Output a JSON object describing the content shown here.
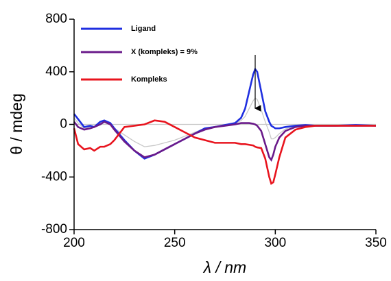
{
  "chart_data": {
    "type": "line",
    "x_label": "λ / nm",
    "y_label": "θ / mdeg",
    "x": [
      200,
      202,
      205,
      208,
      210,
      213,
      215,
      218,
      220,
      225,
      230,
      235,
      240,
      245,
      250,
      255,
      260,
      265,
      270,
      275,
      280,
      283,
      285,
      287,
      289,
      290,
      291,
      293,
      295,
      297,
      298,
      299,
      300,
      302,
      305,
      310,
      315,
      320,
      330,
      340,
      350
    ],
    "xlim": [
      200,
      350
    ],
    "xticks": [
      200,
      250,
      300,
      350
    ],
    "ylim": [
      -800,
      800
    ],
    "yticks": [
      -800,
      -400,
      0,
      400,
      800
    ],
    "legend": "upper left",
    "series": [
      {
        "color": "#c8c8c8",
        "values": [
          0,
          0,
          0,
          0,
          0,
          0,
          0,
          0,
          0,
          0,
          0,
          0,
          0,
          0,
          0,
          0,
          0,
          0,
          0,
          0,
          0,
          0,
          0,
          0,
          0,
          0,
          0,
          0,
          0,
          0,
          0,
          0,
          0,
          0,
          0,
          0,
          0,
          0,
          0,
          0,
          0
        ]
      },
      {
        "color": "#c8c8c8",
        "values": [
          50,
          10,
          -30,
          -20,
          -20,
          10,
          20,
          0,
          -30,
          -80,
          -130,
          -170,
          -160,
          -140,
          -120,
          -90,
          -60,
          -30,
          -15,
          -5,
          5,
          30,
          60,
          120,
          180,
          200,
          190,
          110,
          20,
          -60,
          -110,
          -110,
          -100,
          -70,
          -35,
          -15,
          -8,
          -10,
          -10,
          -8,
          -10
        ]
      },
      {
        "name": "Ligand",
        "color": "#1f2fe0",
        "values": [
          80,
          40,
          -20,
          -10,
          -20,
          20,
          30,
          10,
          -30,
          -120,
          -200,
          -260,
          -230,
          -190,
          -150,
          -110,
          -70,
          -30,
          -20,
          -5,
          10,
          50,
          120,
          250,
          380,
          420,
          400,
          250,
          100,
          20,
          -10,
          -20,
          -30,
          -30,
          -20,
          -10,
          -5,
          -10,
          -10,
          -5,
          -10
        ]
      },
      {
        "name": "X (kompleks) = 9%",
        "color": "#6a1a8a",
        "values": [
          20,
          -20,
          -40,
          -30,
          -20,
          0,
          20,
          0,
          -40,
          -130,
          -200,
          -250,
          -230,
          -190,
          -150,
          -110,
          -70,
          -40,
          -20,
          -10,
          0,
          10,
          10,
          10,
          5,
          0,
          -10,
          -50,
          -150,
          -250,
          -270,
          -230,
          -170,
          -100,
          -50,
          -20,
          -10,
          -10,
          -10,
          -10,
          -10
        ]
      },
      {
        "name": "Kompleks",
        "color": "#e8141e",
        "values": [
          -30,
          -150,
          -190,
          -180,
          -200,
          -170,
          -170,
          -150,
          -120,
          -20,
          -10,
          0,
          30,
          20,
          -20,
          -60,
          -100,
          -120,
          -140,
          -140,
          -140,
          -150,
          -150,
          -155,
          -160,
          -170,
          -175,
          -180,
          -260,
          -400,
          -450,
          -440,
          -380,
          -250,
          -100,
          -40,
          -20,
          -10,
          -10,
          -10,
          -10
        ]
      }
    ]
  }
}
